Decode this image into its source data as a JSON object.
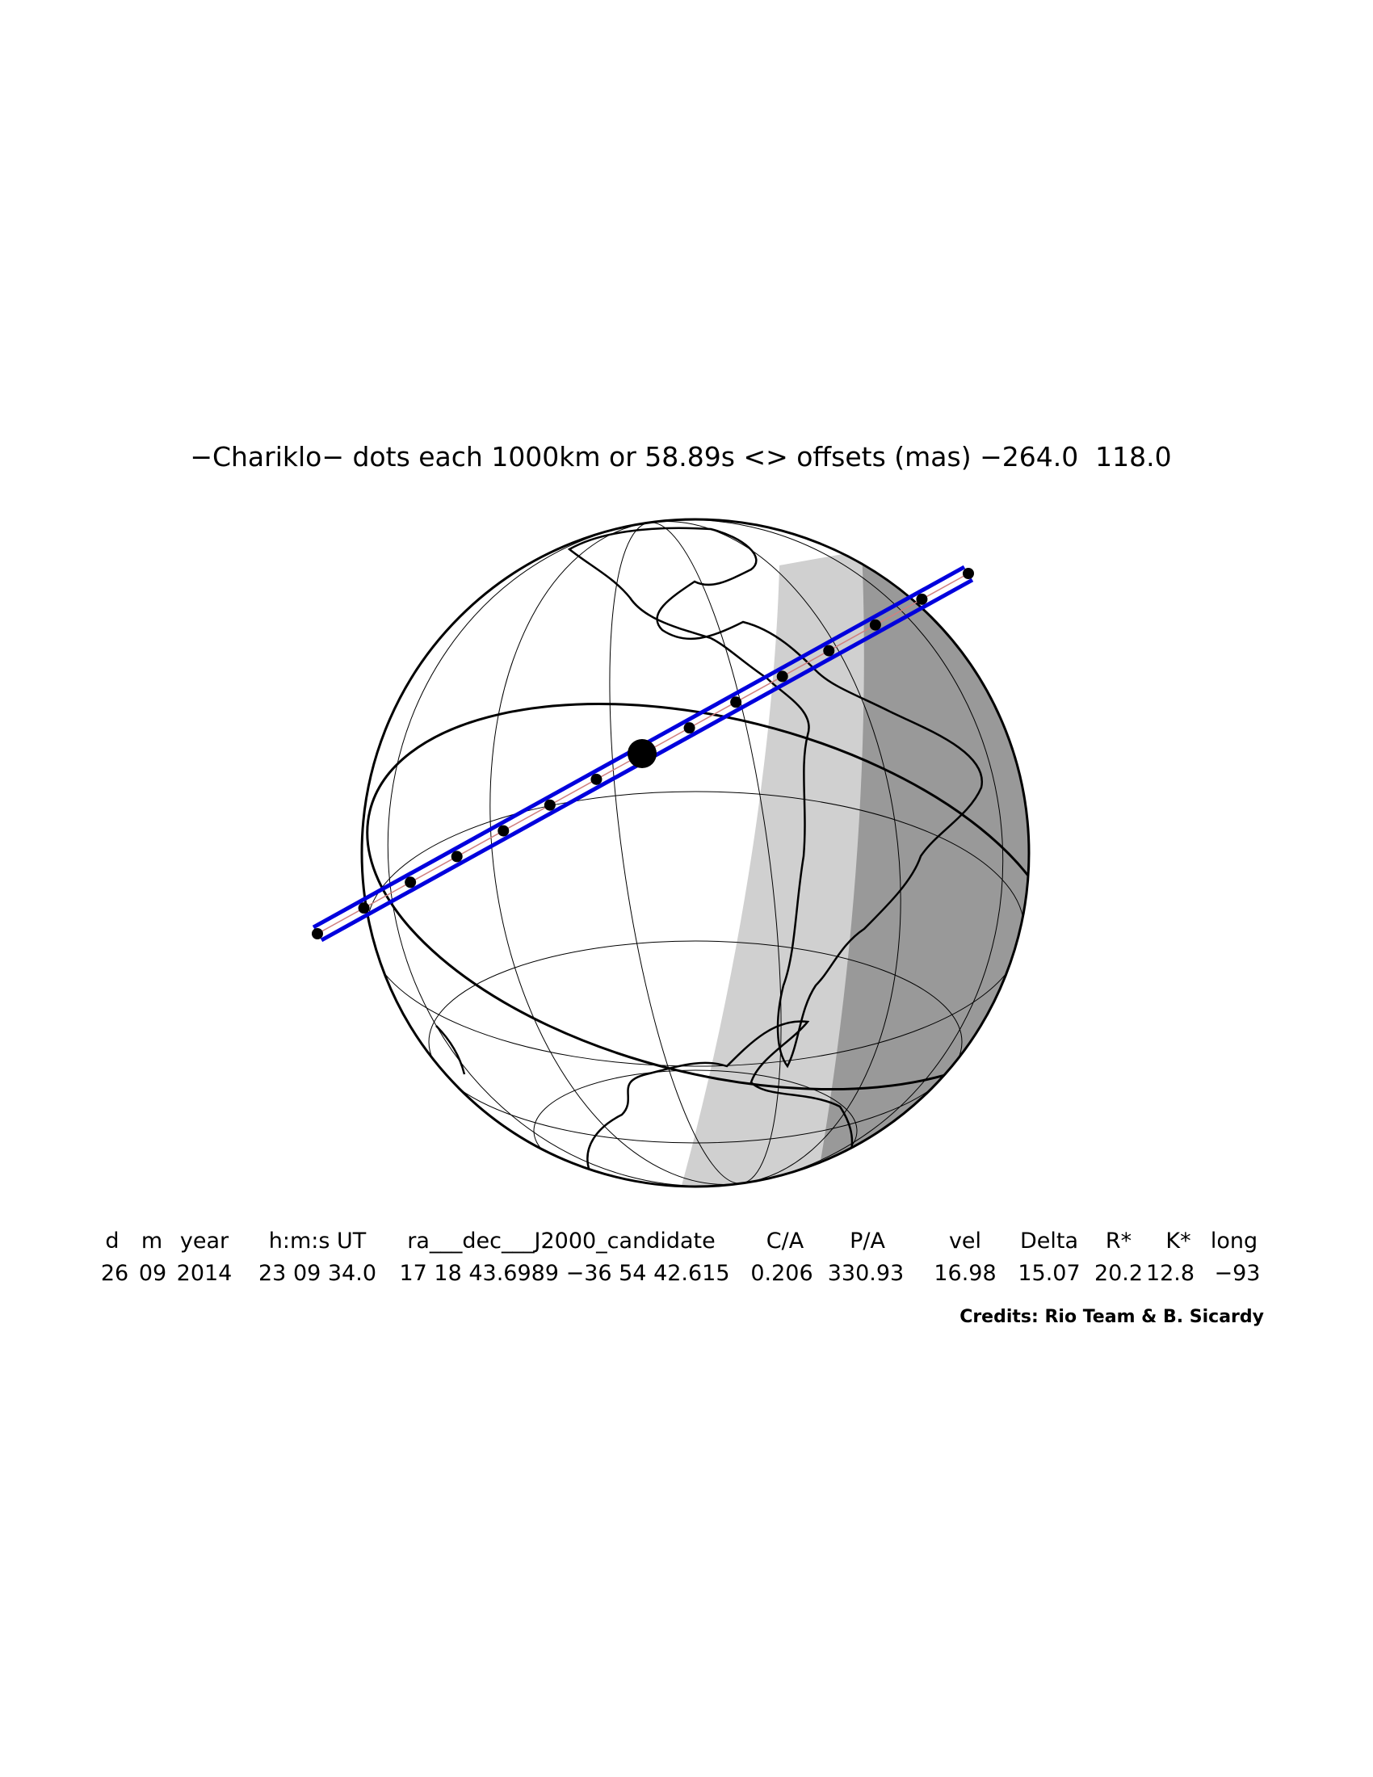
{
  "title": "−Chariklo− dots each 1000km or 58.89s <> offsets (mas) −264.0  118.0",
  "table": {
    "headers": [
      "d",
      "m",
      "year",
      "h:m:s UT",
      "ra___dec___J2000_candidate",
      "C/A",
      "P/A",
      "vel",
      "Delta",
      "R*",
      "K*",
      "long"
    ],
    "rows": [
      [
        "26",
        "09",
        "2014",
        "23 09 34.0",
        "17 18 43.6989 −36 54 42.615",
        "0.206",
        "330.93",
        "16.98",
        "15.07",
        "20.2",
        "12.8",
        "−93"
      ]
    ]
  },
  "credits": "Credits: Rio Team & B. Sicardy"
}
